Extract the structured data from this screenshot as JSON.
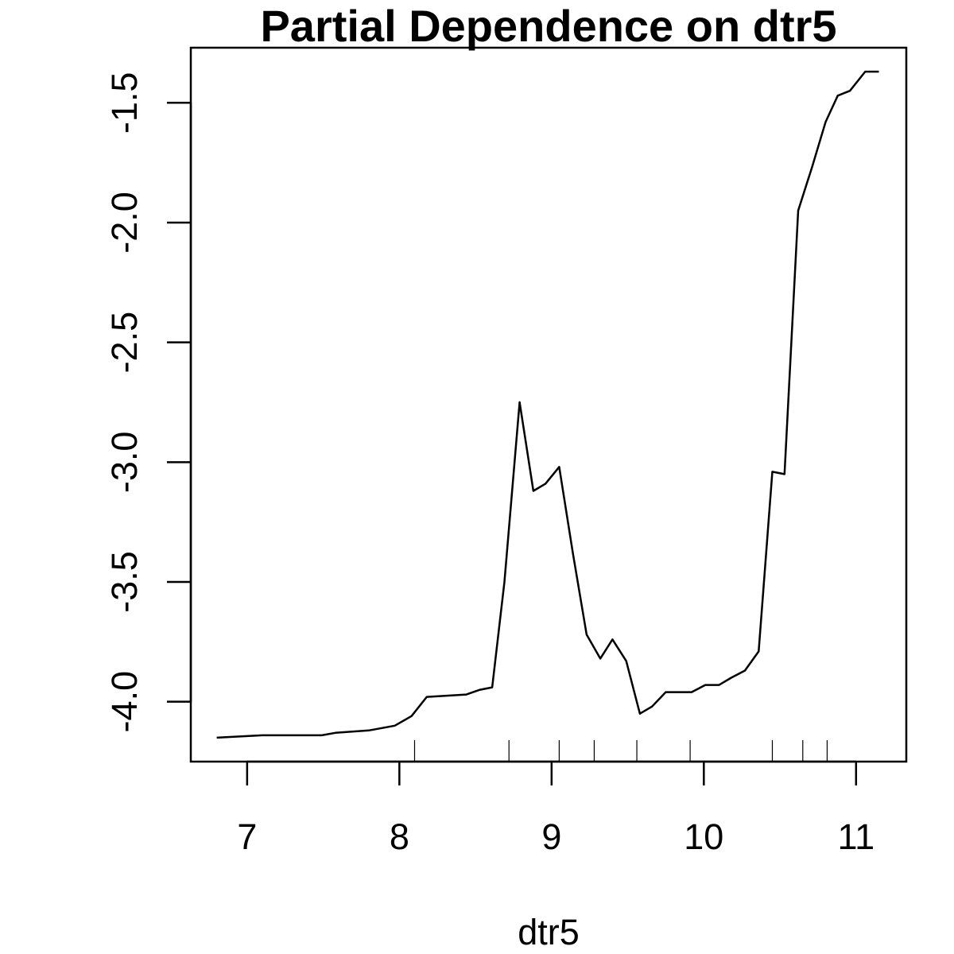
{
  "chart_data": {
    "type": "line",
    "title": "Partial Dependence on dtr5",
    "xlabel": "dtr5",
    "ylabel": "",
    "xlim": [
      6.63,
      11.33
    ],
    "ylim": [
      -4.25,
      -1.27
    ],
    "x_ticks": [
      7,
      8,
      9,
      10,
      11
    ],
    "x_tick_labels": [
      "7",
      "8",
      "9",
      "10",
      "11"
    ],
    "y_ticks": [
      -4.0,
      -3.5,
      -3.0,
      -2.5,
      -2.0,
      -1.5
    ],
    "y_tick_labels": [
      "-4.0",
      "-3.5",
      "-3.0",
      "-2.5",
      "-2.0",
      "-1.5"
    ],
    "grid": false,
    "series": [
      {
        "x": [
          6.8,
          7.1,
          7.49,
          7.58,
          7.8,
          7.97,
          8.08,
          8.18,
          8.44,
          8.53,
          8.61,
          8.69,
          8.79,
          8.88,
          8.96,
          9.05,
          9.14,
          9.23,
          9.32,
          9.4,
          9.49,
          9.58,
          9.66,
          9.75,
          9.83,
          9.92,
          10.01,
          10.1,
          10.18,
          10.27,
          10.36,
          10.45,
          10.53,
          10.62,
          10.71,
          10.8,
          10.88,
          10.96,
          11.06,
          11.15
        ],
        "y": [
          -4.15,
          -4.14,
          -4.14,
          -4.13,
          -4.12,
          -4.1,
          -4.06,
          -3.98,
          -3.97,
          -3.95,
          -3.94,
          -3.5,
          -2.75,
          -3.12,
          -3.09,
          -3.02,
          -3.38,
          -3.72,
          -3.82,
          -3.74,
          -3.83,
          -4.05,
          -4.02,
          -3.96,
          -3.96,
          -3.96,
          -3.93,
          -3.93,
          -3.9,
          -3.87,
          -3.79,
          -3.04,
          -3.05,
          -1.95,
          -1.77,
          -1.58,
          -1.47,
          -1.45,
          -1.37,
          -1.37
        ]
      }
    ],
    "rug": [
      8.1,
      8.72,
      9.05,
      9.28,
      9.56,
      9.91,
      10.45,
      10.65,
      10.81
    ]
  }
}
